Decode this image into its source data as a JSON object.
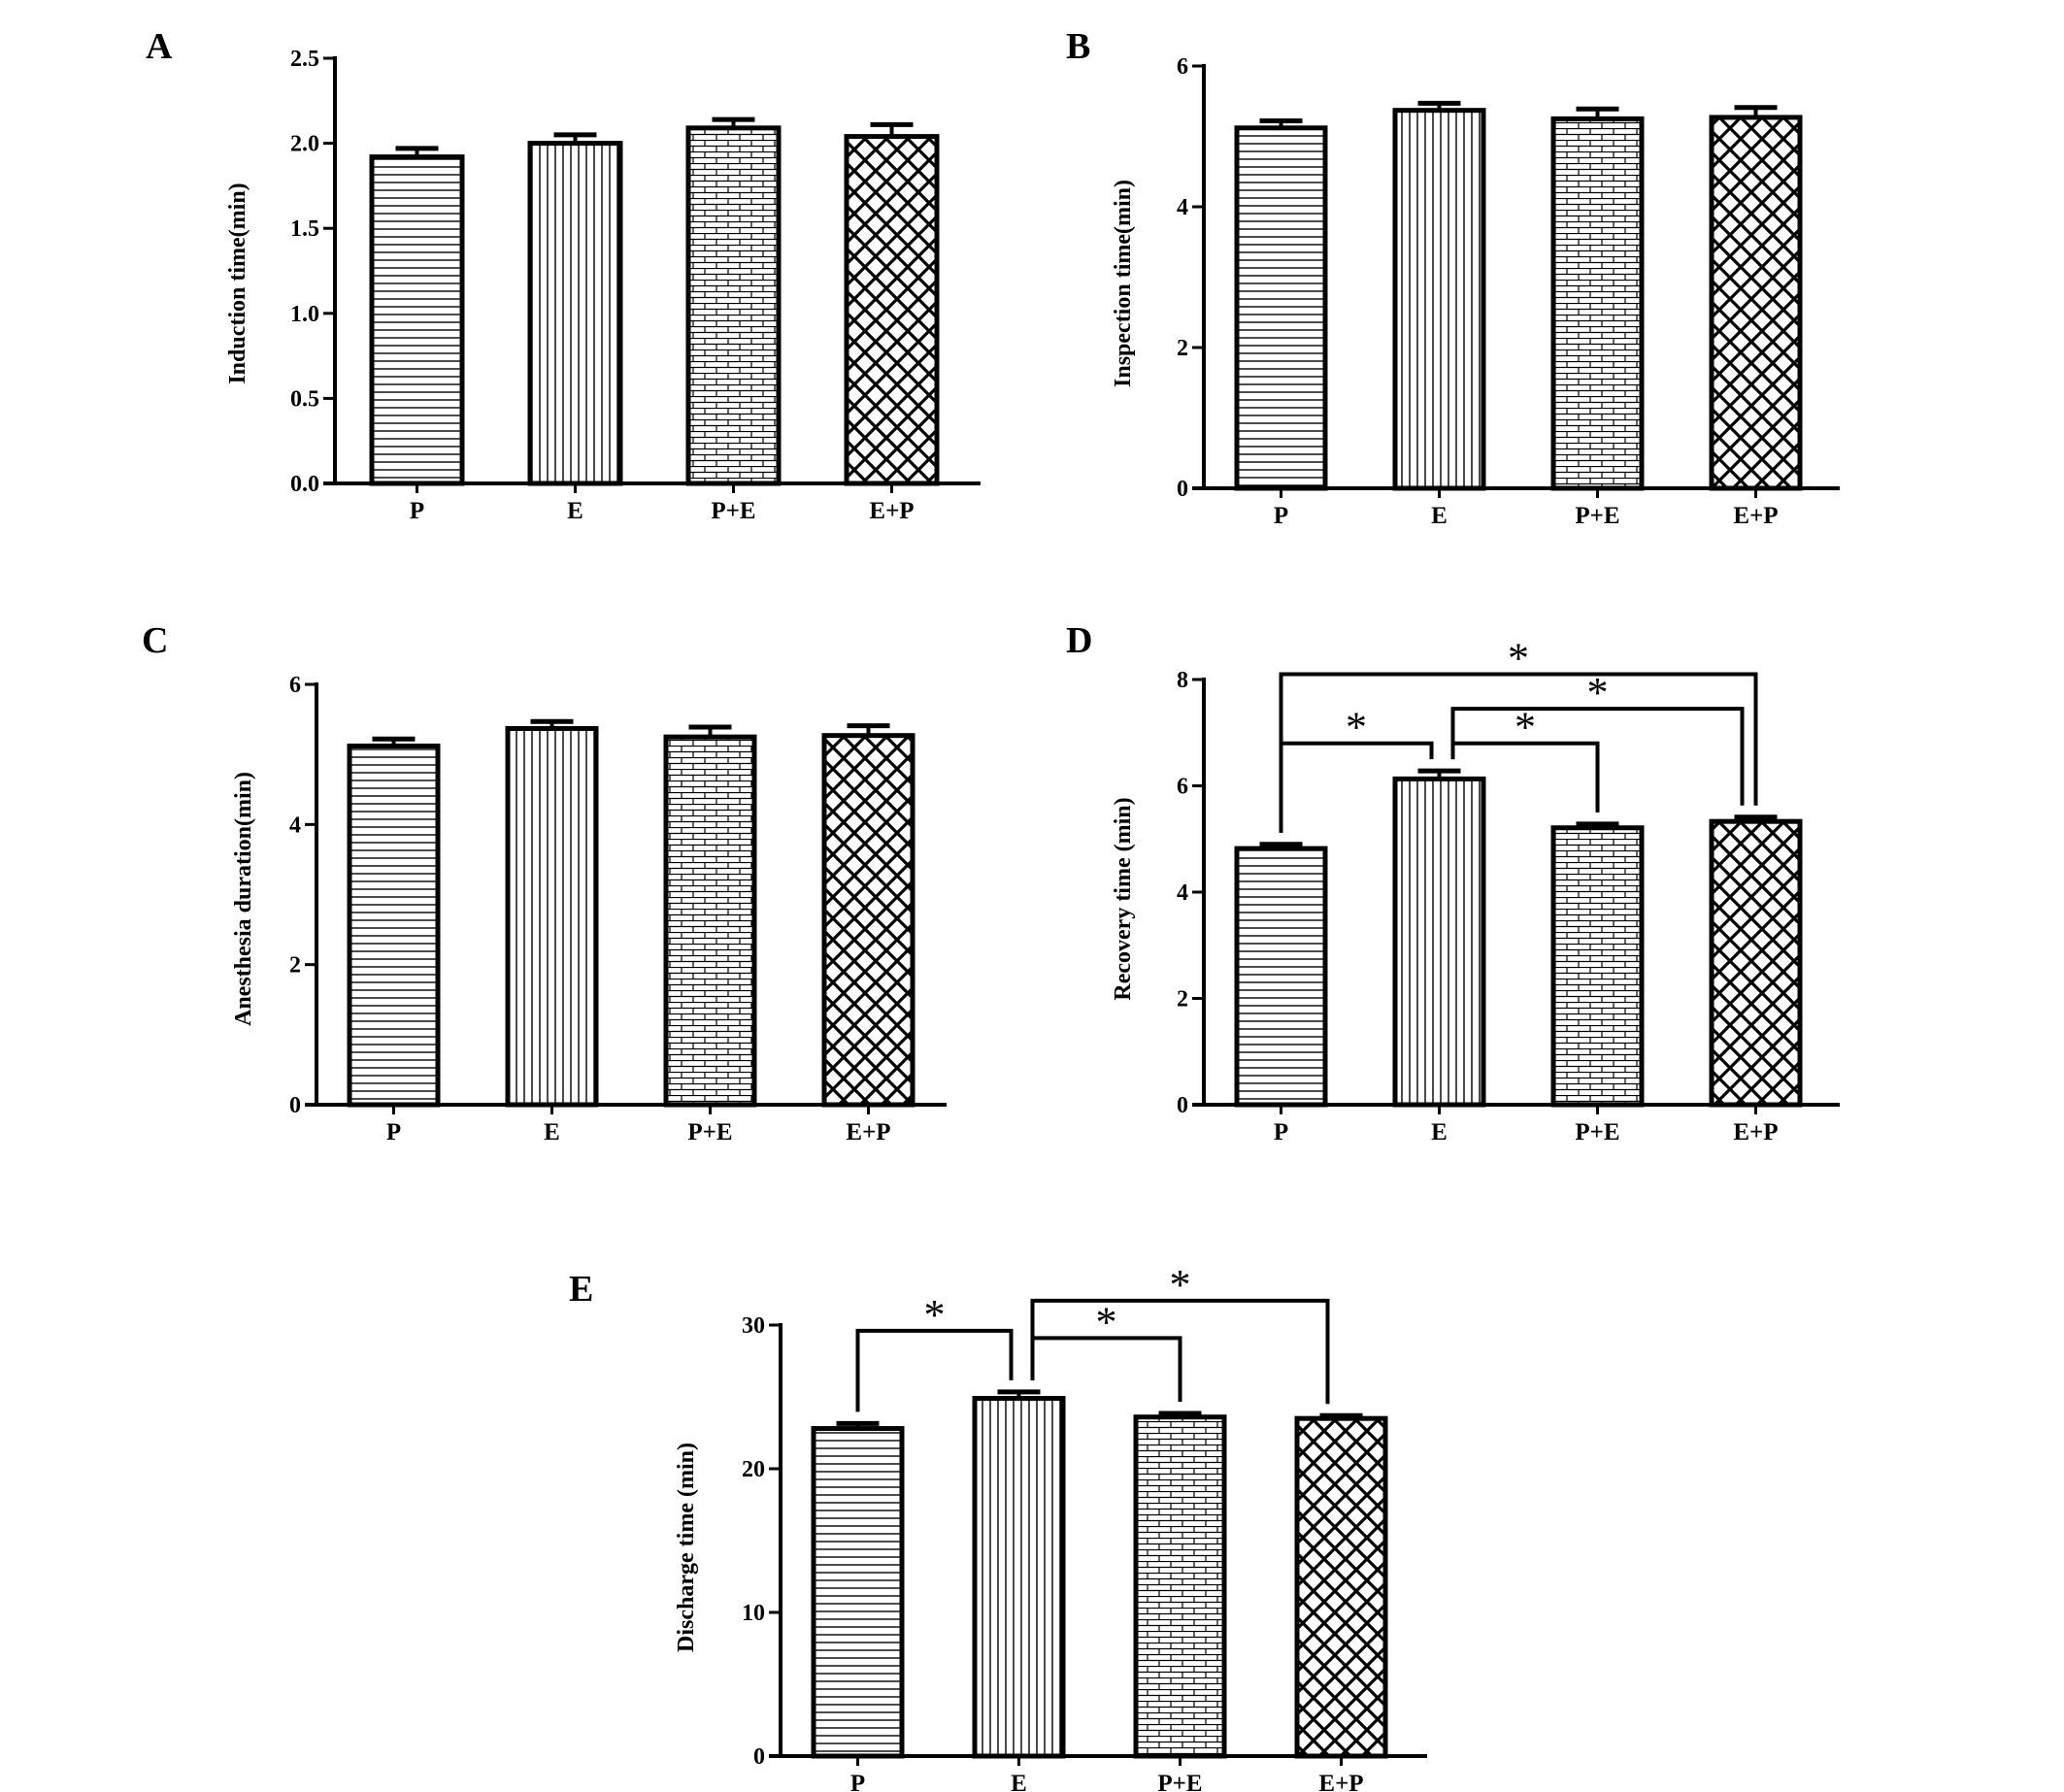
{
  "colors": {
    "ink": "#000000",
    "background": "#ffffff"
  },
  "chart_data": [
    {
      "panel": "A",
      "type": "bar",
      "categories": [
        "P",
        "E",
        "P+E",
        "E+P"
      ],
      "values": [
        1.92,
        2.0,
        2.09,
        2.04
      ],
      "errors": [
        0.05,
        0.05,
        0.05,
        0.07
      ],
      "ylabel": "Induction time(min)",
      "ylim": [
        0,
        2.5
      ],
      "yticks": [
        0,
        0.5,
        1.0,
        1.5,
        2.0,
        2.5
      ],
      "ytick_labels": [
        "0.0",
        "0.5",
        "1.0",
        "1.5",
        "2.0",
        "2.5"
      ],
      "patterns": [
        "horizontal-lines",
        "vertical-lines",
        "brick",
        "crosshatch"
      ],
      "significance": []
    },
    {
      "panel": "B",
      "type": "bar",
      "categories": [
        "P",
        "E",
        "P+E",
        "E+P"
      ],
      "values": [
        5.12,
        5.37,
        5.25,
        5.27
      ],
      "errors": [
        0.1,
        0.1,
        0.14,
        0.14
      ],
      "ylabel": "Inspection time(min)",
      "ylim": [
        0,
        6
      ],
      "yticks": [
        0,
        2,
        4,
        6
      ],
      "ytick_labels": [
        "0",
        "2",
        "4",
        "6"
      ],
      "patterns": [
        "horizontal-lines",
        "vertical-lines",
        "brick",
        "crosshatch"
      ],
      "significance": []
    },
    {
      "panel": "C",
      "type": "bar",
      "categories": [
        "P",
        "E",
        "P+E",
        "E+P"
      ],
      "values": [
        5.12,
        5.37,
        5.25,
        5.27
      ],
      "errors": [
        0.1,
        0.1,
        0.14,
        0.14
      ],
      "ylabel": "Anesthesia duration(min)",
      "ylim": [
        0,
        6
      ],
      "yticks": [
        0,
        2,
        4,
        6
      ],
      "ytick_labels": [
        "0",
        "2",
        "4",
        "6"
      ],
      "patterns": [
        "horizontal-lines",
        "vertical-lines",
        "brick",
        "crosshatch"
      ],
      "significance": []
    },
    {
      "panel": "D",
      "type": "bar",
      "categories": [
        "P",
        "E",
        "P+E",
        "E+P"
      ],
      "values": [
        4.82,
        6.13,
        5.21,
        5.33
      ],
      "errors": [
        0.08,
        0.15,
        0.07,
        0.08
      ],
      "ylabel": "Recovery time (min)",
      "ylim": [
        0,
        8
      ],
      "yticks": [
        0,
        2,
        4,
        6,
        8
      ],
      "ytick_labels": [
        "0",
        "2",
        "4",
        "6",
        "8"
      ],
      "patterns": [
        "horizontal-lines",
        "vertical-lines",
        "brick",
        "crosshatch"
      ],
      "significance": [
        {
          "from": "P",
          "to": "E+P",
          "y": 8.1,
          "label": "*"
        },
        {
          "from": "E",
          "to": "E+P",
          "y": 7.45,
          "label": "*"
        },
        {
          "from": "P",
          "to": "E",
          "y": 6.8,
          "label": "*"
        },
        {
          "from": "E",
          "to": "P+E",
          "y": 6.8,
          "label": "*"
        }
      ]
    },
    {
      "panel": "E",
      "type": "bar",
      "categories": [
        "P",
        "E",
        "P+E",
        "E+P"
      ],
      "values": [
        22.8,
        24.9,
        23.6,
        23.5
      ],
      "errors": [
        0.35,
        0.45,
        0.25,
        0.2
      ],
      "ylabel": "Discharge time (min)",
      "ylim": [
        0,
        30
      ],
      "yticks": [
        0,
        10,
        20,
        30
      ],
      "ytick_labels": [
        "0",
        "10",
        "20",
        "30"
      ],
      "patterns": [
        "horizontal-lines",
        "vertical-lines",
        "brick",
        "crosshatch"
      ],
      "significance": [
        {
          "from": "E",
          "to": "E+P",
          "y": 31.7,
          "label": "*"
        },
        {
          "from": "P",
          "to": "E",
          "y": 29.6,
          "label": "*"
        },
        {
          "from": "E",
          "to": "P+E",
          "y": 29.1,
          "label": "*"
        }
      ]
    }
  ]
}
